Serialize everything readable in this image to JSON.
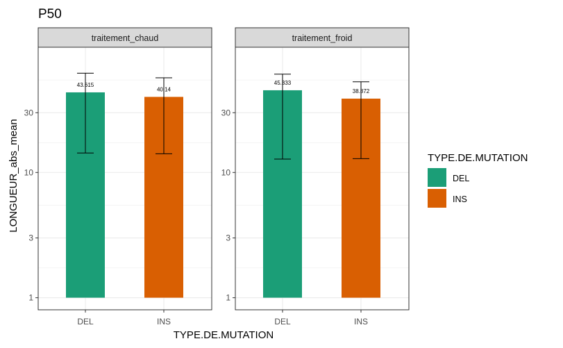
{
  "chart_data": {
    "type": "bar",
    "title": "P50",
    "xlabel": "TYPE.DE.MUTATION",
    "ylabel": "LONGUEUR_abs_mean",
    "y_scale": "log",
    "ylim": [
      1,
      70
    ],
    "yticks": [
      1,
      3,
      10,
      30
    ],
    "grid": true,
    "categories": [
      "DEL",
      "INS"
    ],
    "legend": {
      "title": "TYPE.DE.MUTATION",
      "position": "right",
      "entries": [
        {
          "name": "DEL",
          "color": "#1b9e77"
        },
        {
          "name": "INS",
          "color": "#d95f02"
        }
      ]
    },
    "facets": [
      {
        "label": "traitement_chaud",
        "values": [
          43.615,
          40.14
        ],
        "value_labels": [
          "43.615",
          "40.14"
        ],
        "error_low": [
          14.3,
          14.1
        ],
        "error_high": [
          62.0,
          57.0
        ]
      },
      {
        "label": "traitement_froid",
        "values": [
          45.333,
          38.872
        ],
        "value_labels": [
          "45.333",
          "38.872"
        ],
        "error_low": [
          12.8,
          12.9
        ],
        "error_high": [
          61.0,
          53.0
        ]
      }
    ]
  }
}
